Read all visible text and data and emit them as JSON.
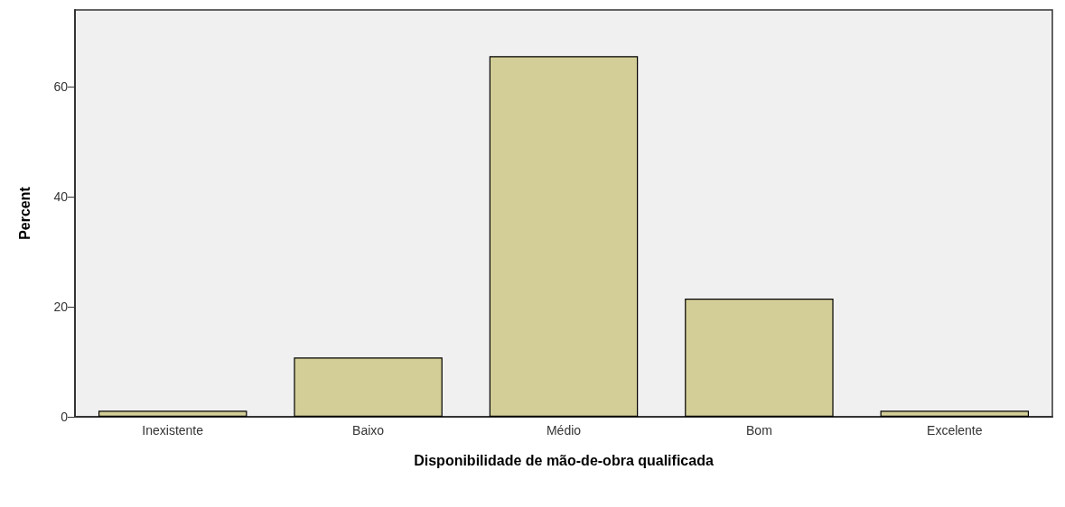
{
  "chart_data": {
    "type": "bar",
    "xlabel": "Disponibilidade de mão-de-obra qualificada",
    "ylabel": "Percent",
    "categories": [
      "Inexistente",
      "Baixo",
      "Médio",
      "Bom",
      "Excelente"
    ],
    "values": [
      1.1,
      10.8,
      65.6,
      21.5,
      1.1
    ],
    "color": "#d3ce97",
    "ylim": [
      0,
      74
    ],
    "yticks": [
      0,
      20,
      40,
      60
    ],
    "grid": false
  }
}
